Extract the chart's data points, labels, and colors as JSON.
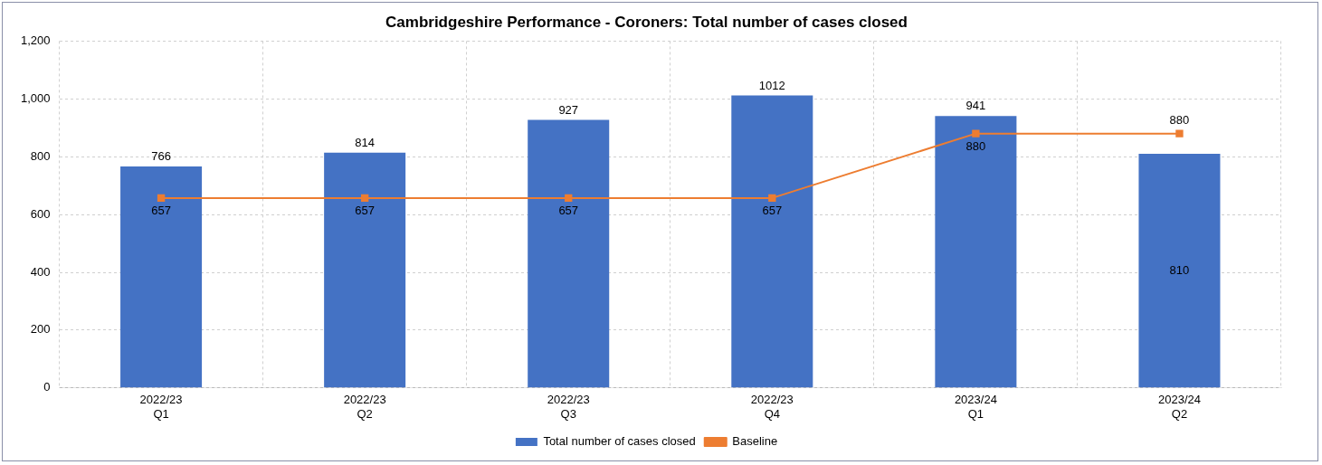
{
  "chart_data": {
    "type": "bar",
    "title": "Cambridgeshire Performance - Coroners: Total number of cases closed",
    "categories": [
      "2022/23 Q1",
      "2022/23 Q2",
      "2022/23 Q3",
      "2022/23 Q4",
      "2023/24 Q1",
      "2023/24 Q2"
    ],
    "series": [
      {
        "name": "Total number of cases closed",
        "color": "#4472c4",
        "values": [
          766,
          814,
          927,
          1012,
          941,
          810
        ]
      },
      {
        "name": "Baseline",
        "type": "line",
        "color": "#ed7d31",
        "marker": "square",
        "values": [
          657,
          657,
          657,
          657,
          880,
          880
        ]
      }
    ],
    "ylim": [
      0,
      1200
    ],
    "yticks": [
      0,
      200,
      400,
      600,
      800,
      {
        "value": 1000,
        "label": "1,000"
      },
      {
        "value": 1200,
        "label": "1,200"
      }
    ],
    "grid": true,
    "legend": "bottom",
    "data_labels": true
  }
}
